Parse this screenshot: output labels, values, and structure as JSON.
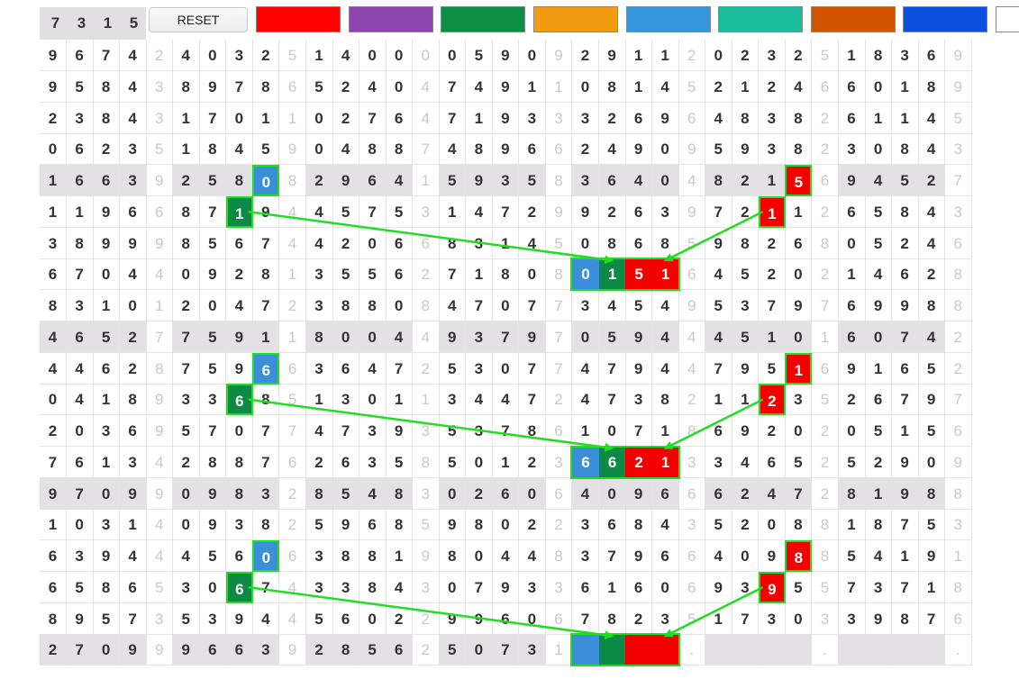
{
  "toolbar": {
    "lead_digits": [
      "7",
      "3",
      "1",
      "5"
    ],
    "reset_label": "RESET",
    "swatches": [
      {
        "name": "red",
        "color": "#fe0000"
      },
      {
        "name": "purple",
        "color": "#8e44ad"
      },
      {
        "name": "green",
        "color": "#0a8f45"
      },
      {
        "name": "orange",
        "color": "#f39c12"
      },
      {
        "name": "blue",
        "color": "#3498db"
      },
      {
        "name": "teal",
        "color": "#1abc9c"
      },
      {
        "name": "dark-orange",
        "color": "#d35400"
      },
      {
        "name": "royal-blue",
        "color": "#0a4fe0"
      },
      {
        "name": "white",
        "color": "#ffffff"
      }
    ]
  },
  "colors": {
    "shade": "#e4e1e5",
    "highlight_border": "#22dd22",
    "arrow": "#22dd22",
    "blue_cell": "#3a8fd8",
    "green_cell": "#0d8a45",
    "red_cell": "#f40000"
  },
  "grid": {
    "shaded_rows": [
      4,
      9,
      14,
      19
    ],
    "rows": [
      [
        "9674",
        "2",
        "4032",
        "5",
        "1400",
        "0",
        "0590",
        "9",
        "2911",
        "2",
        "0232",
        "5",
        "1836",
        "9"
      ],
      [
        "9584",
        "3",
        "8978",
        "6",
        "5240",
        "4",
        "7491",
        "1",
        "0814",
        "5",
        "2124",
        "6",
        "6018",
        "9"
      ],
      [
        "2384",
        "3",
        "1701",
        "1",
        "0276",
        "4",
        "7193",
        "3",
        "3269",
        "6",
        "4838",
        "2",
        "6114",
        "5"
      ],
      [
        "0623",
        "5",
        "1845",
        "9",
        "0488",
        "7",
        "4896",
        "6",
        "2490",
        "9",
        "5938",
        "2",
        "3084",
        "3"
      ],
      [
        "1663",
        "9",
        "2580",
        "8",
        "2964",
        "1",
        "5935",
        "8",
        "3640",
        "4",
        "8215",
        "6",
        "9452",
        "7"
      ],
      [
        "1196",
        "6",
        "8719",
        "4",
        "4575",
        "3",
        "1472",
        "9",
        "9263",
        "9",
        "7211",
        "2",
        "6584",
        "3"
      ],
      [
        "3899",
        "9",
        "8567",
        "4",
        "4206",
        "6",
        "8314",
        "5",
        "0868",
        "5",
        "9826",
        "8",
        "0524",
        "6"
      ],
      [
        "6704",
        "4",
        "0928",
        "1",
        "3556",
        "2",
        "7180",
        "8",
        "0151",
        "6",
        "4520",
        "2",
        "1462",
        "8"
      ],
      [
        "8310",
        "1",
        "2047",
        "2",
        "3880",
        "8",
        "4707",
        "7",
        "3454",
        "9",
        "5379",
        "7",
        "6998",
        "8"
      ],
      [
        "4652",
        "7",
        "7591",
        "1",
        "8004",
        "4",
        "9379",
        "7",
        "0594",
        "4",
        "4510",
        "1",
        "6074",
        "2"
      ],
      [
        "4462",
        "8",
        "7596",
        "6",
        "3647",
        "2",
        "5307",
        "7",
        "4794",
        "4",
        "7951",
        "6",
        "9165",
        "2"
      ],
      [
        "0418",
        "9",
        "3368",
        "5",
        "1301",
        "1",
        "3447",
        "2",
        "4738",
        "2",
        "1123",
        "5",
        "2679",
        "7"
      ],
      [
        "2036",
        "9",
        "5707",
        "7",
        "4739",
        "3",
        "5378",
        "6",
        "1071",
        "8",
        "6920",
        "2",
        "0515",
        "6"
      ],
      [
        "7613",
        "4",
        "2887",
        "6",
        "2635",
        "8",
        "5012",
        "3",
        "6621",
        "3",
        "3465",
        "2",
        "5290",
        "9"
      ],
      [
        "9709",
        "9",
        "0983",
        "2",
        "8548",
        "3",
        "0260",
        "6",
        "4096",
        "6",
        "6247",
        "2",
        "8198",
        "8"
      ],
      [
        "1031",
        "4",
        "0938",
        "2",
        "5968",
        "5",
        "9802",
        "2",
        "3684",
        "3",
        "5208",
        "8",
        "1875",
        "3"
      ],
      [
        "6394",
        "4",
        "4560",
        "6",
        "3881",
        "9",
        "8044",
        "8",
        "3796",
        "6",
        "4098",
        "8",
        "5419",
        "1"
      ],
      [
        "6586",
        "5",
        "3067",
        "4",
        "3384",
        "3",
        "0793",
        "3",
        "6160",
        "6",
        "9395",
        "5",
        "7371",
        "8"
      ],
      [
        "8957",
        "3",
        "5394",
        "4",
        "5602",
        "2",
        "9960",
        "6",
        "7823",
        "5",
        "1730",
        "3",
        "3987",
        "6"
      ],
      [
        "2709",
        "9",
        "9663",
        "9",
        "2856",
        "2",
        "5073",
        "1",
        "    ",
        ".",
        "    ",
        ".",
        "    ",
        "."
      ]
    ]
  }
}
